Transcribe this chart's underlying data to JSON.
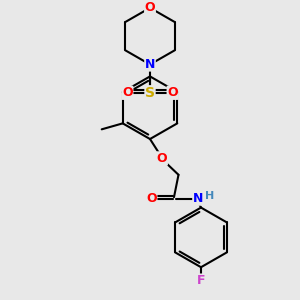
{
  "background_color": "#e8e8e8",
  "atom_colors": {
    "C": "#000000",
    "N": "#0000ff",
    "O": "#ff0000",
    "S": "#ccaa00",
    "F": "#cc44cc",
    "H": "#4488bb"
  },
  "bond_color": "#000000",
  "line_width": 1.5,
  "figsize": [
    3.0,
    3.0
  ],
  "dpi": 100
}
